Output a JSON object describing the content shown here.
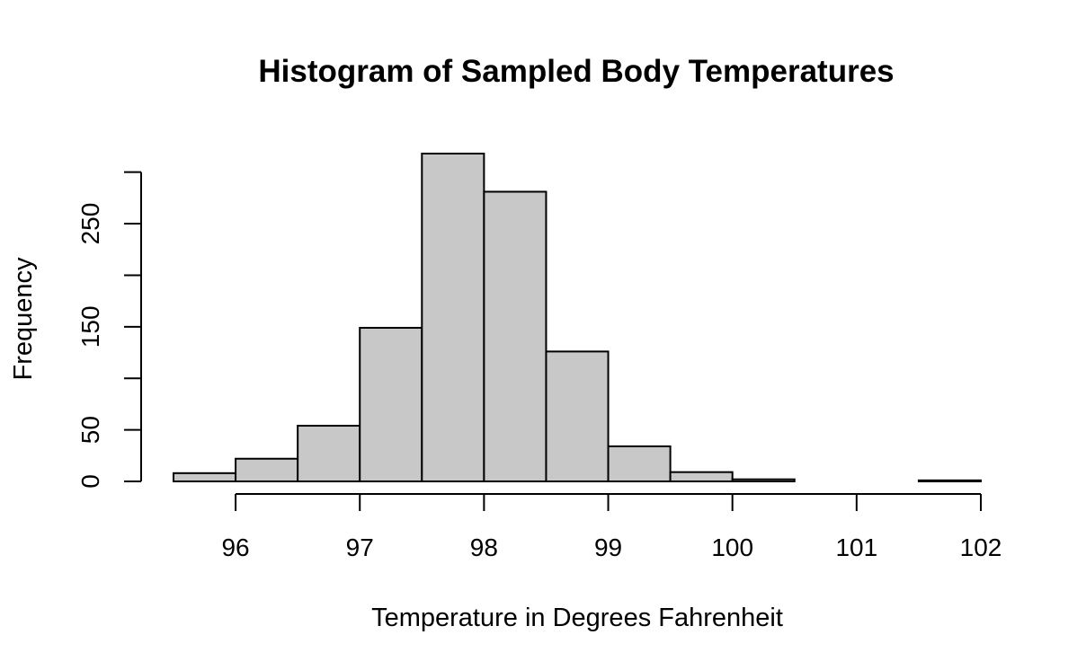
{
  "chart_data": {
    "type": "bar",
    "title": "Histogram of Sampled Body Temperatures",
    "xlabel": "Temperature in Degrees Fahrenheit",
    "ylabel": "Frequency",
    "bar_color": "#c8c8c8",
    "bin_edges": [
      95.5,
      96,
      96.5,
      97,
      97.5,
      98,
      98.5,
      99,
      99.5,
      100,
      100.5,
      101,
      101.5,
      102
    ],
    "values": [
      8,
      22,
      54,
      149,
      318,
      281,
      126,
      34,
      9,
      2,
      0,
      0,
      1
    ],
    "x_ticks": [
      96,
      97,
      98,
      99,
      100,
      101,
      102
    ],
    "x_tick_labels": [
      "96",
      "97",
      "98",
      "99",
      "100",
      "101",
      "102"
    ],
    "y_ticks": [
      0,
      50,
      100,
      150,
      200,
      250,
      300
    ],
    "y_tick_labels": [
      "0",
      "50",
      "",
      "150",
      "",
      "250",
      ""
    ],
    "xlim": [
      95.5,
      102
    ],
    "ylim": [
      0,
      318
    ],
    "grid": false,
    "legend": "none"
  }
}
